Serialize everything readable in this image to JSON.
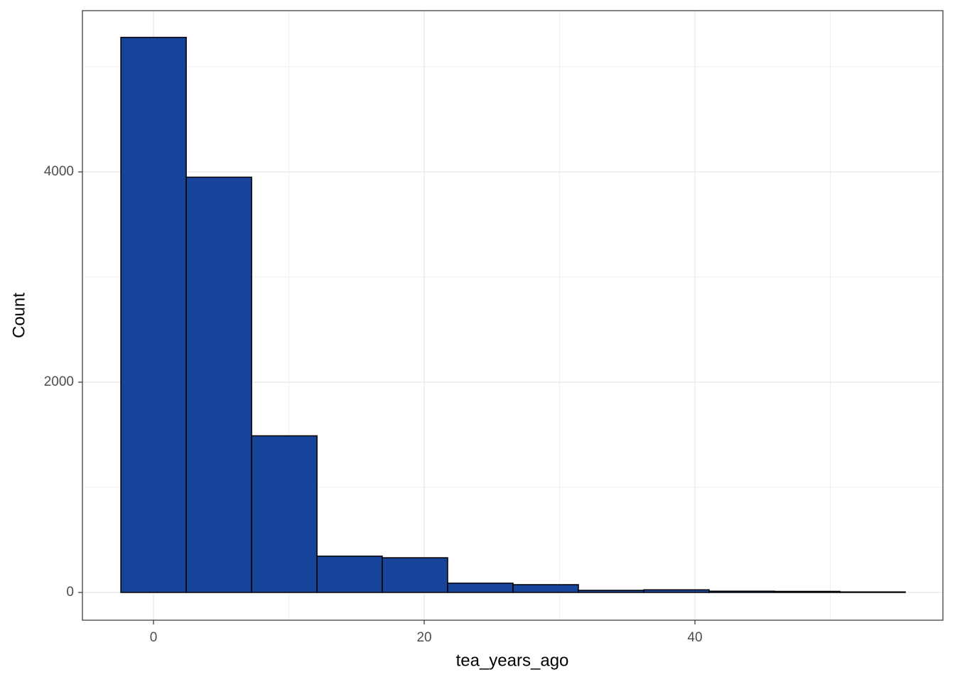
{
  "chart_data": {
    "type": "histogram",
    "x_label": "tea_years_ago",
    "y_label": "Count",
    "bins": [
      -2.41,
      2.42,
      7.25,
      12.08,
      16.9,
      21.73,
      26.56,
      31.39,
      36.22,
      41.05,
      45.88,
      50.71,
      55.54
    ],
    "values": [
      5280,
      3950,
      1490,
      345,
      330,
      88,
      74,
      20,
      25,
      12,
      10,
      5
    ],
    "color": "#18439a",
    "edge_color": "#000000",
    "xlim": [
      -5.25,
      58.32
    ],
    "ylim": [
      -264,
      5534
    ],
    "xticks": [
      0,
      20,
      40
    ],
    "yticks": [
      0,
      2000,
      4000
    ],
    "x_minor_grid": [
      10,
      30,
      50
    ],
    "y_minor_grid": [
      1000,
      3000,
      5000
    ],
    "grid": true
  }
}
